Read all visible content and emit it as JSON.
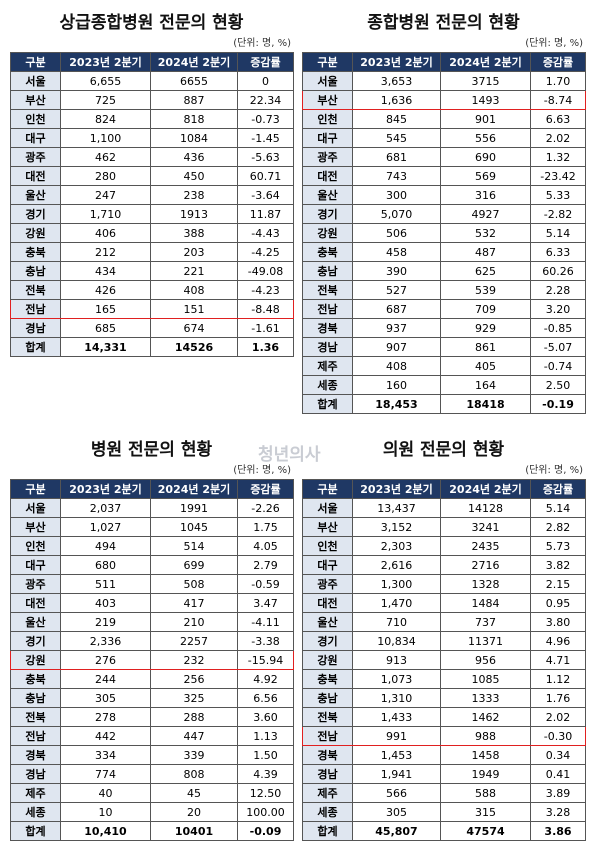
{
  "watermark": "청년의사",
  "tables": [
    {
      "title": "상급종합병원 전문의 현황",
      "unit": "(단위: 명, %)",
      "header": [
        "구분",
        "2023년 2분기",
        "2024년 2분기",
        "증감률"
      ],
      "highlight_row": 12,
      "rows": [
        [
          "서울",
          "6,655",
          "6655",
          "0"
        ],
        [
          "부산",
          "725",
          "887",
          "22.34"
        ],
        [
          "인천",
          "824",
          "818",
          "-0.73"
        ],
        [
          "대구",
          "1,100",
          "1084",
          "-1.45"
        ],
        [
          "광주",
          "462",
          "436",
          "-5.63"
        ],
        [
          "대전",
          "280",
          "450",
          "60.71"
        ],
        [
          "울산",
          "247",
          "238",
          "-3.64"
        ],
        [
          "경기",
          "1,710",
          "1913",
          "11.87"
        ],
        [
          "강원",
          "406",
          "388",
          "-4.43"
        ],
        [
          "충북",
          "212",
          "203",
          "-4.25"
        ],
        [
          "충남",
          "434",
          "221",
          "-49.08"
        ],
        [
          "전북",
          "426",
          "408",
          "-4.23"
        ],
        [
          "전남",
          "165",
          "151",
          "-8.48"
        ],
        [
          "경남",
          "685",
          "674",
          "-1.61"
        ],
        [
          "합계",
          "14,331",
          "14526",
          "1.36"
        ]
      ]
    },
    {
      "title": "종합병원 전문의 현황",
      "unit": "(단위: 명, %)",
      "header": [
        "구분",
        "2023년 2분기",
        "2024년 2분기",
        "증감률"
      ],
      "highlight_row": 1,
      "rows": [
        [
          "서울",
          "3,653",
          "3715",
          "1.70"
        ],
        [
          "부산",
          "1,636",
          "1493",
          "-8.74"
        ],
        [
          "인천",
          "845",
          "901",
          "6.63"
        ],
        [
          "대구",
          "545",
          "556",
          "2.02"
        ],
        [
          "광주",
          "681",
          "690",
          "1.32"
        ],
        [
          "대전",
          "743",
          "569",
          "-23.42"
        ],
        [
          "울산",
          "300",
          "316",
          "5.33"
        ],
        [
          "경기",
          "5,070",
          "4927",
          "-2.82"
        ],
        [
          "강원",
          "506",
          "532",
          "5.14"
        ],
        [
          "충북",
          "458",
          "487",
          "6.33"
        ],
        [
          "충남",
          "390",
          "625",
          "60.26"
        ],
        [
          "전북",
          "527",
          "539",
          "2.28"
        ],
        [
          "전남",
          "687",
          "709",
          "3.20"
        ],
        [
          "경북",
          "937",
          "929",
          "-0.85"
        ],
        [
          "경남",
          "907",
          "861",
          "-5.07"
        ],
        [
          "제주",
          "408",
          "405",
          "-0.74"
        ],
        [
          "세종",
          "160",
          "164",
          "2.50"
        ],
        [
          "합계",
          "18,453",
          "18418",
          "-0.19"
        ]
      ]
    },
    {
      "title": "병원 전문의 현황",
      "unit": "(단위: 명, %)",
      "header": [
        "구분",
        "2023년 2분기",
        "2024년 2분기",
        "증감률"
      ],
      "highlight_row": 8,
      "rows": [
        [
          "서울",
          "2,037",
          "1991",
          "-2.26"
        ],
        [
          "부산",
          "1,027",
          "1045",
          "1.75"
        ],
        [
          "인천",
          "494",
          "514",
          "4.05"
        ],
        [
          "대구",
          "680",
          "699",
          "2.79"
        ],
        [
          "광주",
          "511",
          "508",
          "-0.59"
        ],
        [
          "대전",
          "403",
          "417",
          "3.47"
        ],
        [
          "울산",
          "219",
          "210",
          "-4.11"
        ],
        [
          "경기",
          "2,336",
          "2257",
          "-3.38"
        ],
        [
          "강원",
          "276",
          "232",
          "-15.94"
        ],
        [
          "충북",
          "244",
          "256",
          "4.92"
        ],
        [
          "충남",
          "305",
          "325",
          "6.56"
        ],
        [
          "전북",
          "278",
          "288",
          "3.60"
        ],
        [
          "전남",
          "442",
          "447",
          "1.13"
        ],
        [
          "경북",
          "334",
          "339",
          "1.50"
        ],
        [
          "경남",
          "774",
          "808",
          "4.39"
        ],
        [
          "제주",
          "40",
          "45",
          "12.50"
        ],
        [
          "세종",
          "10",
          "20",
          "100.00"
        ],
        [
          "합계",
          "10,410",
          "10401",
          "-0.09"
        ]
      ]
    },
    {
      "title": "의원 전문의 현황",
      "unit": "(단위: 명, %)",
      "header": [
        "구분",
        "2023년 2분기",
        "2024년 2분기",
        "증감률"
      ],
      "highlight_row": 12,
      "rows": [
        [
          "서울",
          "13,437",
          "14128",
          "5.14"
        ],
        [
          "부산",
          "3,152",
          "3241",
          "2.82"
        ],
        [
          "인천",
          "2,303",
          "2435",
          "5.73"
        ],
        [
          "대구",
          "2,616",
          "2716",
          "3.82"
        ],
        [
          "광주",
          "1,300",
          "1328",
          "2.15"
        ],
        [
          "대전",
          "1,470",
          "1484",
          "0.95"
        ],
        [
          "울산",
          "710",
          "737",
          "3.80"
        ],
        [
          "경기",
          "10,834",
          "11371",
          "4.96"
        ],
        [
          "강원",
          "913",
          "956",
          "4.71"
        ],
        [
          "충북",
          "1,073",
          "1085",
          "1.12"
        ],
        [
          "충남",
          "1,310",
          "1333",
          "1.76"
        ],
        [
          "전북",
          "1,433",
          "1462",
          "2.02"
        ],
        [
          "전남",
          "991",
          "988",
          "-0.30"
        ],
        [
          "경북",
          "1,453",
          "1458",
          "0.34"
        ],
        [
          "경남",
          "1,941",
          "1949",
          "0.41"
        ],
        [
          "제주",
          "566",
          "588",
          "3.89"
        ],
        [
          "세종",
          "305",
          "315",
          "3.28"
        ],
        [
          "합계",
          "45,807",
          "47574",
          "3.86"
        ]
      ]
    }
  ]
}
